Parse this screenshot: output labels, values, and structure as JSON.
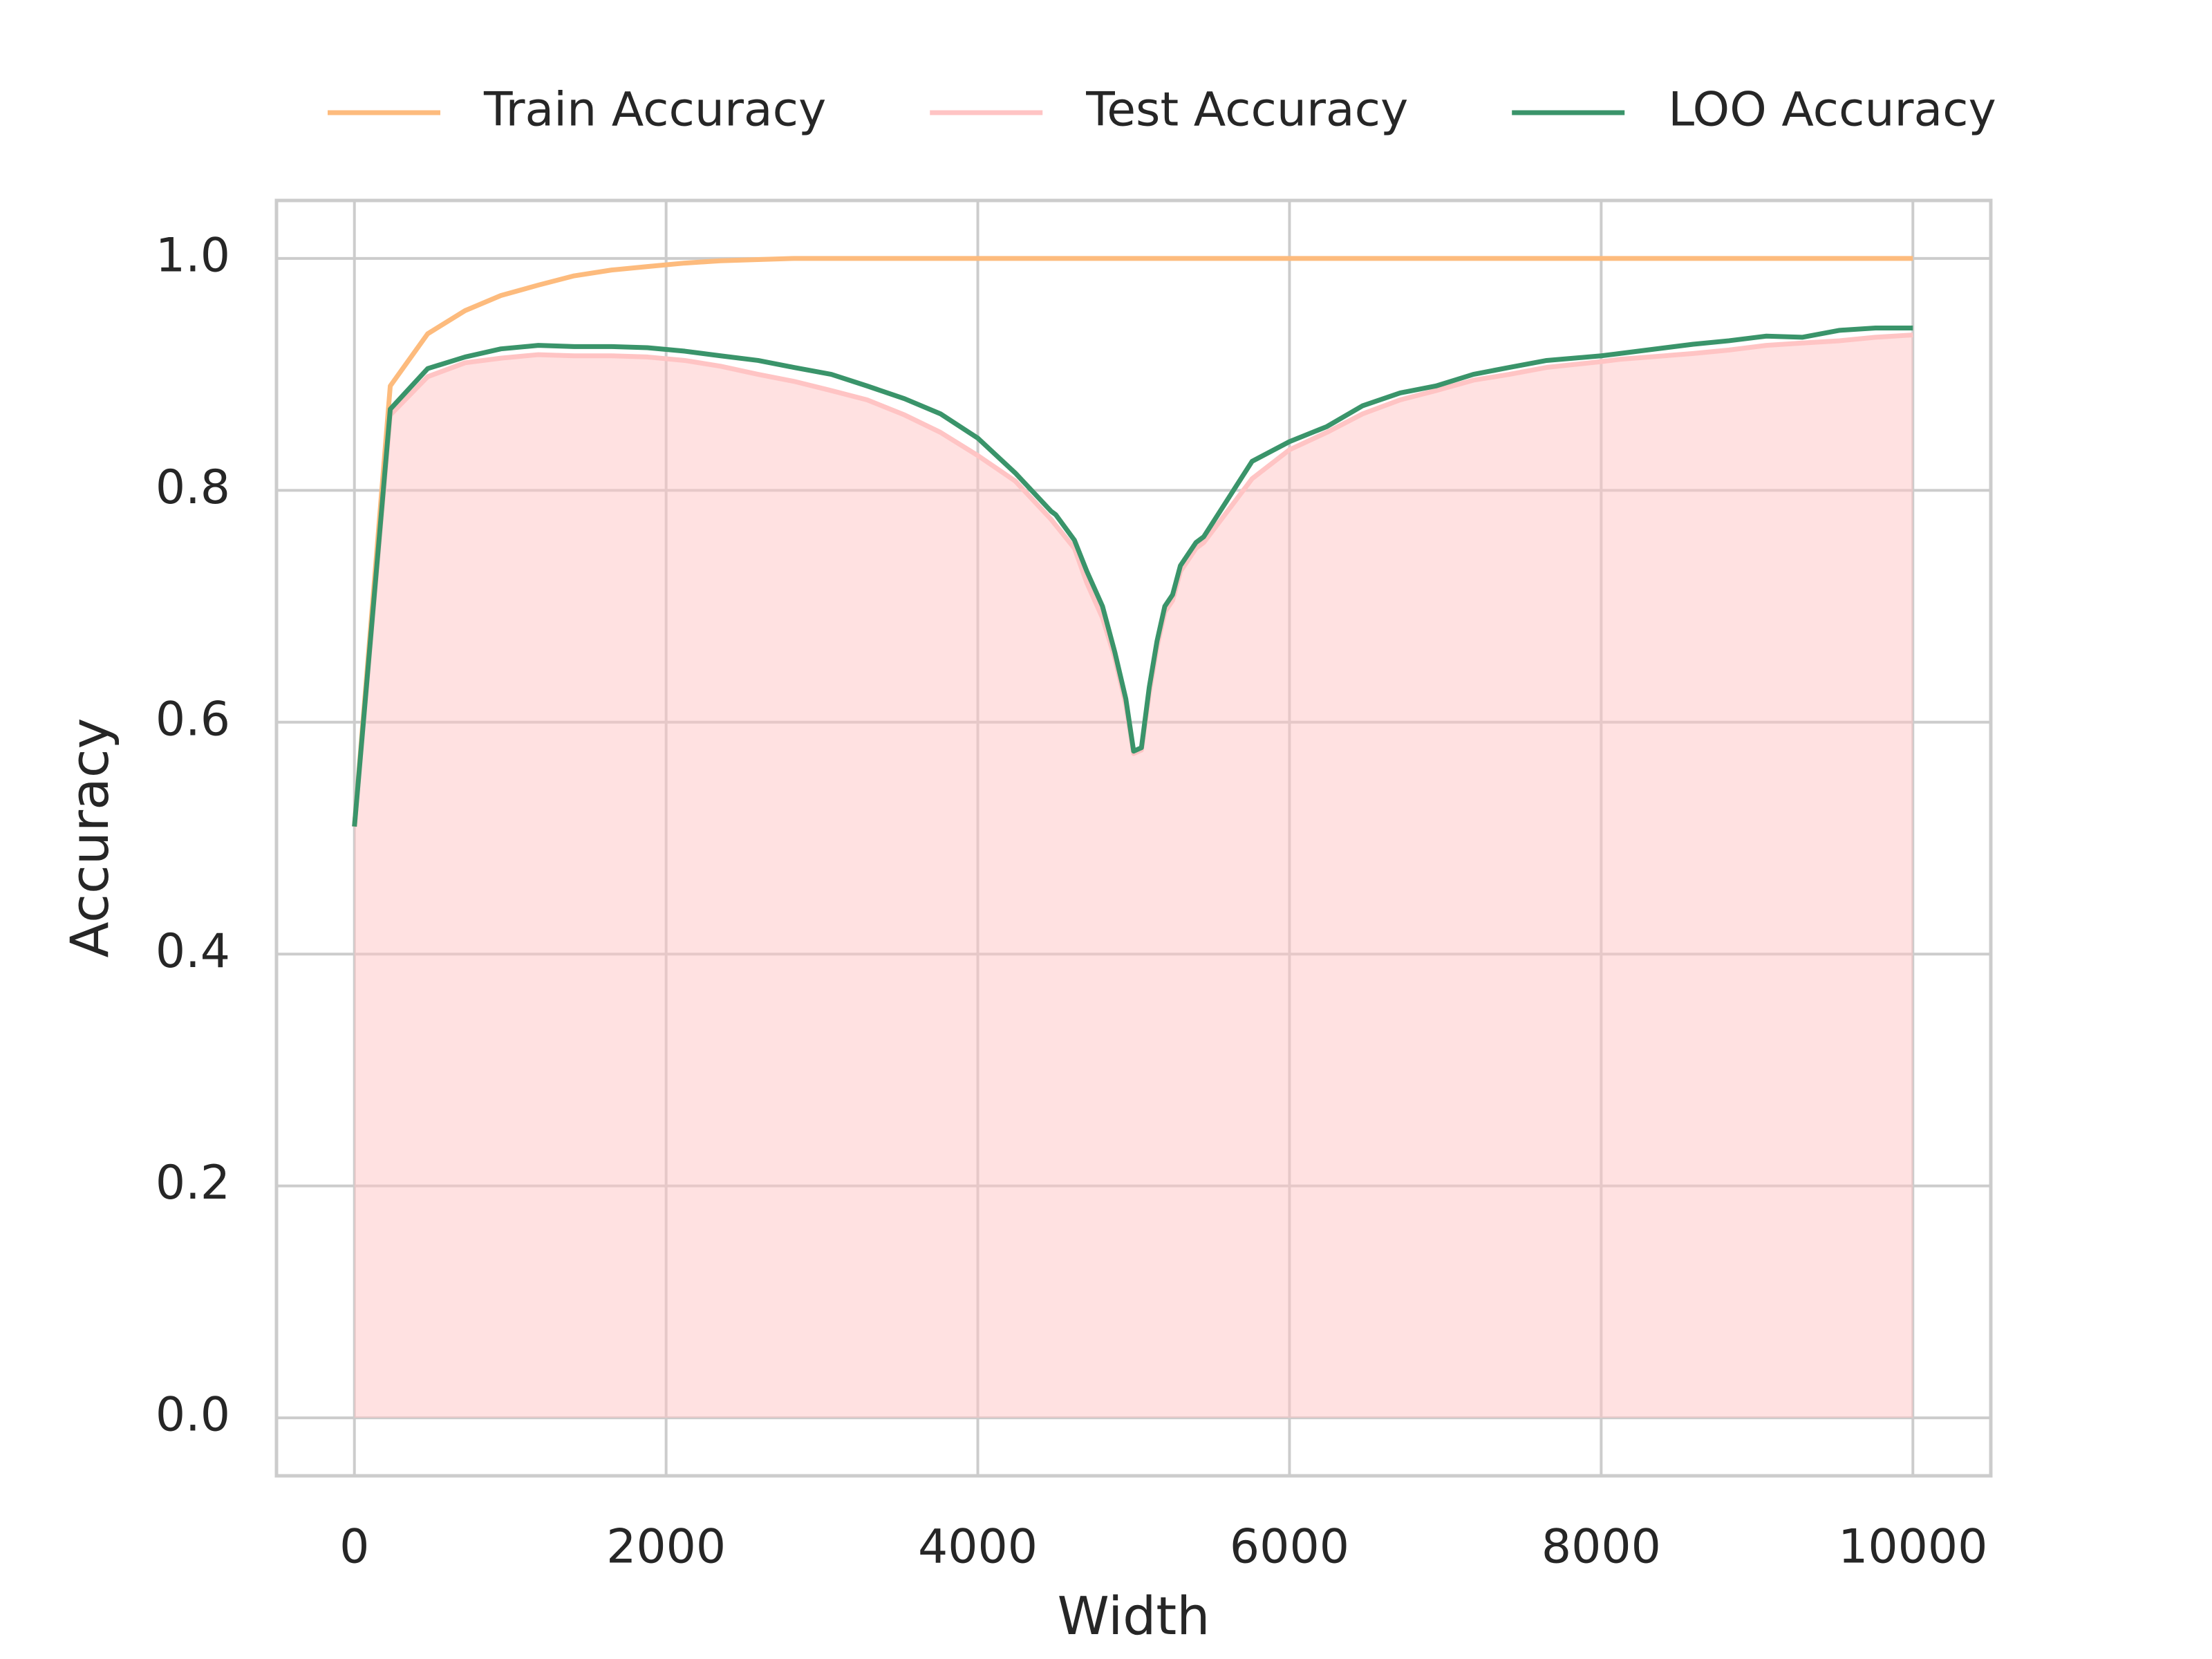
{
  "chart_data": {
    "type": "line",
    "xlabel": "Width",
    "ylabel": "Accuracy",
    "x": [
      0,
      230,
      470,
      710,
      940,
      1180,
      1410,
      1650,
      1880,
      2120,
      2350,
      2590,
      2820,
      3060,
      3290,
      3530,
      3760,
      4000,
      4240,
      4470,
      4500,
      4620,
      4700,
      4800,
      4880,
      4950,
      5000,
      5050,
      5100,
      5150,
      5200,
      5250,
      5300,
      5400,
      5450,
      5760,
      6000,
      6240,
      6470,
      6710,
      6940,
      7180,
      7410,
      7650,
      8000,
      8120,
      8590,
      8820,
      9060,
      9290,
      9530,
      9760,
      10000
    ],
    "series": [
      {
        "name": "Train Accuracy",
        "color": "#fdbb7d",
        "values": [
          0.51,
          0.89,
          0.935,
          0.955,
          0.968,
          0.977,
          0.985,
          0.99,
          0.993,
          0.996,
          0.998,
          0.999,
          1.0,
          1.0,
          1.0,
          1.0,
          1.0,
          1.0,
          1.0,
          1.0,
          1.0,
          1.0,
          1.0,
          1.0,
          1.0,
          1.0,
          1.0,
          1.0,
          1.0,
          1.0,
          1.0,
          1.0,
          1.0,
          1.0,
          1.0,
          1.0,
          1.0,
          1.0,
          1.0,
          1.0,
          1.0,
          1.0,
          1.0,
          1.0,
          1.0,
          1.0,
          1.0,
          1.0,
          1.0,
          1.0,
          1.0,
          1.0,
          1.0
        ]
      },
      {
        "name": "Test Accuracy",
        "color": "#ffc4c4",
        "fill": true,
        "values": [
          0.51,
          0.865,
          0.898,
          0.91,
          0.914,
          0.917,
          0.916,
          0.916,
          0.915,
          0.912,
          0.907,
          0.9,
          0.894,
          0.886,
          0.878,
          0.865,
          0.85,
          0.83,
          0.808,
          0.775,
          0.77,
          0.75,
          0.72,
          0.69,
          0.655,
          0.615,
          0.573,
          0.576,
          0.625,
          0.665,
          0.695,
          0.705,
          0.73,
          0.75,
          0.755,
          0.81,
          0.835,
          0.85,
          0.866,
          0.878,
          0.886,
          0.895,
          0.9,
          0.906,
          0.911,
          0.913,
          0.918,
          0.921,
          0.925,
          0.927,
          0.929,
          0.932,
          0.934
        ]
      },
      {
        "name": "LOO Accuracy",
        "color": "#3a946a",
        "values": [
          0.51,
          0.87,
          0.905,
          0.915,
          0.922,
          0.925,
          0.924,
          0.924,
          0.923,
          0.92,
          0.916,
          0.912,
          0.906,
          0.9,
          0.89,
          0.879,
          0.866,
          0.845,
          0.815,
          0.782,
          0.779,
          0.757,
          0.73,
          0.7,
          0.66,
          0.62,
          0.575,
          0.578,
          0.63,
          0.67,
          0.7,
          0.71,
          0.735,
          0.755,
          0.76,
          0.825,
          0.842,
          0.855,
          0.873,
          0.884,
          0.89,
          0.9,
          0.906,
          0.912,
          0.916,
          0.918,
          0.926,
          0.929,
          0.933,
          0.932,
          0.938,
          0.94,
          0.94
        ]
      }
    ],
    "xlim": [
      -500,
      10500
    ],
    "xticks": [
      0,
      2000,
      4000,
      6000,
      8000,
      10000
    ],
    "ylim": [
      -0.05,
      1.05
    ],
    "yticks": [
      {
        "value": 0,
        "label": "0.0"
      },
      0.2,
      0.4,
      0.6,
      0.8,
      {
        "value": 1,
        "label": "1.0"
      }
    ],
    "grid": true,
    "legend": "top"
  }
}
